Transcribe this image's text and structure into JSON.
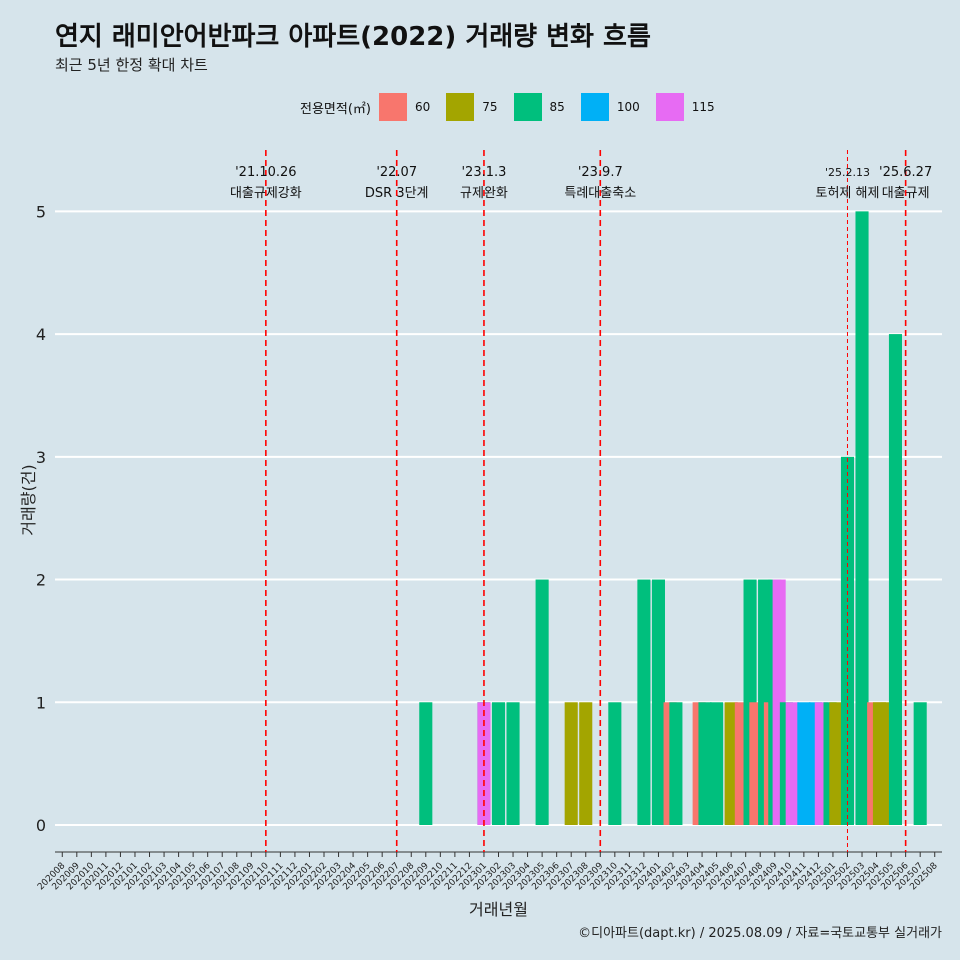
{
  "title": "연지 래미안어반파크 아파트(2022) 거래량 변화 흐름",
  "subtitle": "최근 5년 한정 확대 차트",
  "caption": "©디아파트(dapt.kr) / 2025.08.09 / 자료=국토교통부 실거래가",
  "chart_data": {
    "type": "bar",
    "stacked": true,
    "xlabel": "거래년월",
    "ylabel": "거래량(건)",
    "ylim": [
      -0.22,
      5.5
    ],
    "yticks": [
      0,
      1,
      2,
      3,
      4,
      5
    ],
    "grid": "horizontal",
    "legend": {
      "title": "전용면적(㎡)",
      "position": "top",
      "entries": [
        {
          "label": "60",
          "color": "#F8766D"
        },
        {
          "label": "75",
          "color": "#A3A500"
        },
        {
          "label": "85",
          "color": "#00BF7D"
        },
        {
          "label": "100",
          "color": "#00B0F6"
        },
        {
          "label": "115",
          "color": "#E76BF3"
        }
      ]
    },
    "categories": [
      "202008",
      "202009",
      "202010",
      "202011",
      "202012",
      "202101",
      "202102",
      "202103",
      "202104",
      "202105",
      "202106",
      "202107",
      "202108",
      "202109",
      "202110",
      "202111",
      "202112",
      "202201",
      "202202",
      "202203",
      "202204",
      "202205",
      "202206",
      "202207",
      "202208",
      "202209",
      "202210",
      "202211",
      "202212",
      "202301",
      "202302",
      "202303",
      "202304",
      "202305",
      "202306",
      "202307",
      "202308",
      "202309",
      "202310",
      "202311",
      "202312",
      "202401",
      "202402",
      "202403",
      "202404",
      "202405",
      "202406",
      "202407",
      "202408",
      "202409",
      "202410",
      "202411",
      "202412",
      "202501",
      "202502",
      "202503",
      "202504",
      "202505",
      "202506",
      "202507",
      "202508"
    ],
    "bars": [
      {
        "month": "202209",
        "offset": 0.0,
        "area": "85",
        "value": 1
      },
      {
        "month": "202301",
        "offset": 0.0,
        "area": "85",
        "value": 1
      },
      {
        "month": "202301",
        "offset": 0.0,
        "area": "115",
        "value": 1
      },
      {
        "month": "202302",
        "offset": 0.0,
        "area": "85",
        "value": 1
      },
      {
        "month": "202303",
        "offset": 0.0,
        "area": "85",
        "value": 1
      },
      {
        "month": "202305",
        "offset": 0.0,
        "area": "85",
        "value": 2
      },
      {
        "month": "202307",
        "offset": 0.0,
        "area": "75",
        "value": 1
      },
      {
        "month": "202308",
        "offset": 0.0,
        "area": "75",
        "value": 1
      },
      {
        "month": "202310",
        "offset": 0.0,
        "area": "85",
        "value": 1
      },
      {
        "month": "202312",
        "offset": 0.0,
        "area": "85",
        "value": 2
      },
      {
        "month": "202401",
        "offset": 0.0,
        "area": "85",
        "value": 2
      },
      {
        "month": "202402",
        "offset": -0.2,
        "area": "60",
        "value": 1
      },
      {
        "month": "202402",
        "offset": 0.2,
        "area": "85",
        "value": 1
      },
      {
        "month": "202404",
        "offset": -0.2,
        "area": "60",
        "value": 1
      },
      {
        "month": "202404",
        "offset": 0.2,
        "area": "85",
        "value": 1
      },
      {
        "month": "202405",
        "offset": 0.0,
        "area": "85",
        "value": 1
      },
      {
        "month": "202406",
        "offset": 0.0,
        "area": "75",
        "value": 1
      },
      {
        "month": "202407",
        "offset": -0.3,
        "area": "60",
        "value": 1
      },
      {
        "month": "202407",
        "offset": 0.3,
        "area": "85",
        "value": 2
      },
      {
        "month": "202408",
        "offset": -0.3,
        "area": "60",
        "value": 1
      },
      {
        "month": "202408",
        "offset": 0.3,
        "area": "85",
        "value": 2
      },
      {
        "month": "202409",
        "offset": -0.3,
        "area": "60",
        "value": 1
      },
      {
        "month": "202409",
        "offset": 0.0,
        "area": "85",
        "value": 2
      },
      {
        "month": "202409",
        "offset": 0.3,
        "area": "115",
        "value": 2
      },
      {
        "month": "202410",
        "offset": -0.2,
        "area": "85",
        "value": 1
      },
      {
        "month": "202410",
        "offset": 0.2,
        "area": "115",
        "value": 1
      },
      {
        "month": "202411",
        "offset": 0.0,
        "area": "100",
        "value": 1
      },
      {
        "month": "202412",
        "offset": -0.2,
        "area": "100",
        "value": 1
      },
      {
        "month": "202412",
        "offset": 0.2,
        "area": "115",
        "value": 1
      },
      {
        "month": "202501",
        "offset": -0.2,
        "area": "85",
        "value": 1
      },
      {
        "month": "202501",
        "offset": 0.2,
        "area": "75",
        "value": 1
      },
      {
        "month": "202502",
        "offset": 0.0,
        "area": "85",
        "value": 3
      },
      {
        "month": "202503",
        "offset": 0.0,
        "area": "85",
        "value": 5
      },
      {
        "month": "202504",
        "offset": -0.2,
        "area": "60",
        "value": 1
      },
      {
        "month": "202504",
        "offset": 0.2,
        "area": "75",
        "value": 1
      },
      {
        "month": "202505",
        "offset": -0.3,
        "area": "75",
        "value": 1
      },
      {
        "month": "202505",
        "offset": 0.3,
        "area": "85",
        "value": 4
      },
      {
        "month": "202507",
        "offset": 0.0,
        "area": "85",
        "value": 1
      }
    ],
    "annotations": [
      {
        "month": "202110",
        "date": "'21.10.26",
        "label": "대출규제강화",
        "style": "thick"
      },
      {
        "month": "202207",
        "date": "'22.07",
        "label": "DSR 3단계",
        "style": "thick"
      },
      {
        "month": "202301",
        "date": "'23.1.3",
        "label": "규제완화",
        "style": "thick"
      },
      {
        "month": "202309",
        "date": "'23.9.7",
        "label": "특례대출축소",
        "style": "thick"
      },
      {
        "month": "202502",
        "date": "'25.2.13",
        "label": "토허제 해제",
        "style": "thin"
      },
      {
        "month": "202506",
        "date": "'25.6.27",
        "label": "대출규제",
        "style": "thick"
      }
    ]
  }
}
